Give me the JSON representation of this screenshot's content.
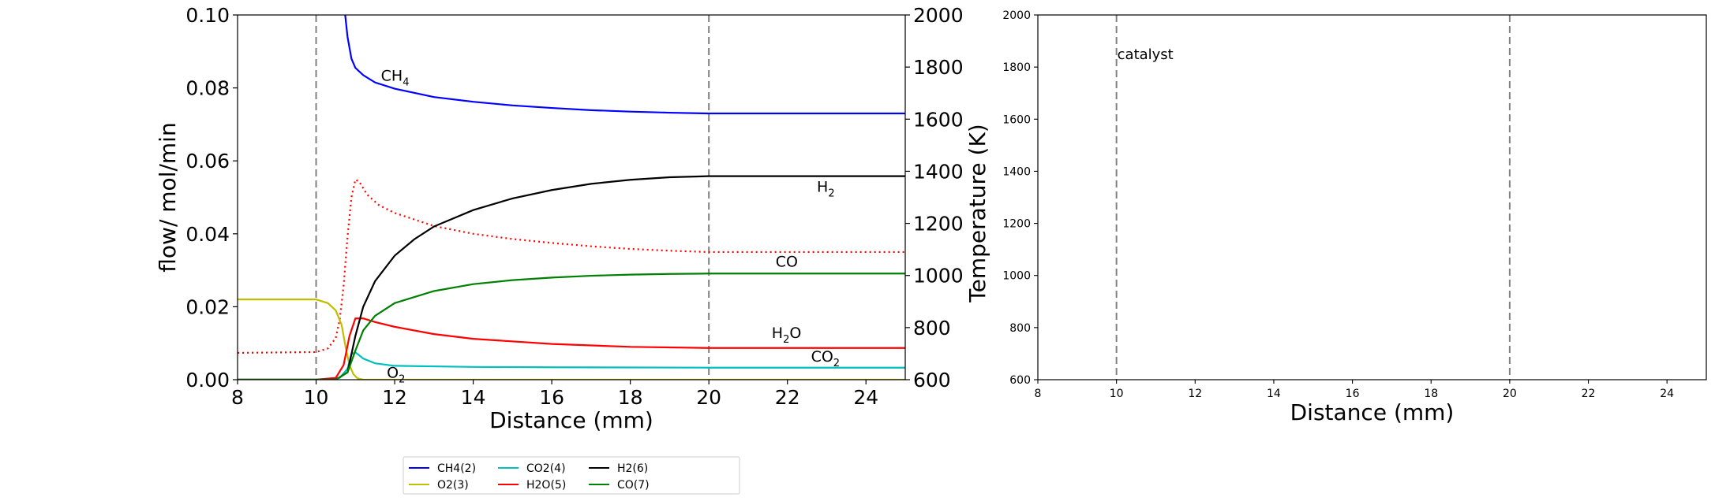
{
  "chart_data": [
    {
      "type": "line",
      "xlabel": "Distance (mm)",
      "ylabel": "flow/ mol/min",
      "y2label": "Temperature (K)",
      "xlim": [
        8,
        25
      ],
      "ylim": [
        0,
        0.1
      ],
      "y2lim": [
        600,
        2000
      ],
      "xticks": [
        "8",
        "10",
        "12",
        "14",
        "16",
        "18",
        "20",
        "22",
        "24"
      ],
      "yticks": [
        "0.00",
        "0.02",
        "0.04",
        "0.06",
        "0.08",
        "0.10"
      ],
      "y2ticks": [
        "600",
        "800",
        "1000",
        "1200",
        "1400",
        "1600",
        "1800",
        "2000"
      ],
      "vlines": [
        10,
        20
      ],
      "grid": false,
      "legend_position": "bottom-center",
      "series": [
        {
          "name": "CH4(2)",
          "color": "#0000ff",
          "x": [
            10.74,
            10.8,
            10.9,
            11,
            11.2,
            11.5,
            12,
            13,
            14,
            15,
            16,
            17,
            18,
            19,
            20,
            25
          ],
          "values": [
            0.1,
            0.094,
            0.088,
            0.0855,
            0.0835,
            0.0815,
            0.0798,
            0.0775,
            0.0762,
            0.0752,
            0.0745,
            0.0739,
            0.0735,
            0.0732,
            0.073,
            0.073
          ]
        },
        {
          "name": "O2(3)",
          "color": "#bfbf00",
          "x": [
            8,
            10,
            10.3,
            10.5,
            10.65,
            10.75,
            10.85,
            10.95,
            11.05,
            11.2,
            25
          ],
          "values": [
            0.022,
            0.022,
            0.021,
            0.019,
            0.015,
            0.009,
            0.004,
            0.0015,
            0.0004,
            0.0,
            0.0
          ]
        },
        {
          "name": "CO2(4)",
          "color": "#00bfbf",
          "x": [
            8,
            10,
            10.6,
            10.8,
            10.9,
            11.0,
            11.2,
            11.5,
            12,
            14,
            16,
            20,
            25
          ],
          "values": [
            0.0,
            0.0,
            0.0005,
            0.003,
            0.007,
            0.0075,
            0.0058,
            0.0045,
            0.0038,
            0.0035,
            0.0034,
            0.0033,
            0.0033
          ]
        },
        {
          "name": "H2O(5)",
          "color": "#ff0000",
          "x": [
            8,
            10,
            10.5,
            10.7,
            10.85,
            11.0,
            11.2,
            11.5,
            12,
            13,
            14,
            16,
            18,
            20,
            25
          ],
          "values": [
            0.0,
            0.0,
            0.0005,
            0.004,
            0.012,
            0.0168,
            0.0168,
            0.0158,
            0.0145,
            0.0125,
            0.0112,
            0.0098,
            0.009,
            0.0087,
            0.0087
          ]
        },
        {
          "name": "H2(6)",
          "color": "#000000",
          "x": [
            8,
            10.5,
            10.8,
            11.0,
            11.2,
            11.5,
            12,
            12.5,
            13,
            14,
            15,
            16,
            17,
            18,
            19,
            20,
            25
          ],
          "values": [
            0.0,
            0.0,
            0.002,
            0.012,
            0.02,
            0.027,
            0.034,
            0.0385,
            0.042,
            0.0465,
            0.0497,
            0.052,
            0.0537,
            0.0548,
            0.0555,
            0.0558,
            0.0558
          ]
        },
        {
          "name": "CO(7)",
          "color": "#008000",
          "x": [
            8,
            10.5,
            10.8,
            11.0,
            11.2,
            11.5,
            12,
            13,
            14,
            15,
            16,
            17,
            18,
            19,
            20,
            25
          ],
          "values": [
            0.0,
            0.0,
            0.002,
            0.008,
            0.0135,
            0.0175,
            0.021,
            0.0243,
            0.0262,
            0.0273,
            0.028,
            0.0285,
            0.0288,
            0.029,
            0.0291,
            0.0291
          ]
        }
      ],
      "temperature_series": {
        "color": "#ff0000",
        "style": "dotted",
        "x": [
          8,
          10,
          10.3,
          10.5,
          10.6,
          10.7,
          10.8,
          10.9,
          11.0,
          11.1,
          11.3,
          11.6,
          12,
          13,
          14,
          15,
          16,
          17,
          18,
          19,
          20,
          25
        ],
        "values": [
          703,
          706,
          720,
          760,
          830,
          960,
          1150,
          1300,
          1368,
          1360,
          1310,
          1270,
          1240,
          1190,
          1160,
          1140,
          1125,
          1112,
          1102,
          1095,
          1090,
          1090
        ]
      },
      "annotations": [
        {
          "label": "CH",
          "sub": "4",
          "after": "",
          "color": "#0000ff",
          "x": 11.65,
          "y": 0.082
        },
        {
          "label": "H",
          "sub": "2",
          "after": "",
          "color": "#000000",
          "x": 22.75,
          "y": 0.0515
        },
        {
          "label": "CO",
          "sub": "",
          "after": "",
          "color": "#008000",
          "x": 21.7,
          "y": 0.031
        },
        {
          "label": "H",
          "sub": "2",
          "after": "O",
          "color": "#ff0000",
          "x": 21.6,
          "y": 0.0115
        },
        {
          "label": "CO",
          "sub": "2",
          "after": "",
          "color": "#00bfbf",
          "x": 22.6,
          "y": 0.005
        },
        {
          "label": "O",
          "sub": "2",
          "after": "",
          "color": "#bfbf00",
          "x": 11.8,
          "y": 0.0005
        }
      ]
    },
    {
      "type": "line",
      "xlabel": "Distance (mm)",
      "xlim": [
        8,
        25
      ],
      "ylim": [
        600,
        2000
      ],
      "xticks": [
        "8",
        "10",
        "12",
        "14",
        "16",
        "18",
        "20",
        "22",
        "24"
      ],
      "yticks": [
        "600",
        "800",
        "1000",
        "1200",
        "1400",
        "1600",
        "1800",
        "2000"
      ],
      "vlines": [
        10,
        20
      ],
      "grid": false,
      "annotations": [
        {
          "label": "catalyst",
          "x": 10,
          "y": 1840
        }
      ],
      "series": []
    }
  ],
  "legend": {
    "items": [
      "CH4(2)",
      "O2(3)",
      "CO2(4)",
      "H2O(5)",
      "H2(6)",
      "CO(7)"
    ]
  }
}
